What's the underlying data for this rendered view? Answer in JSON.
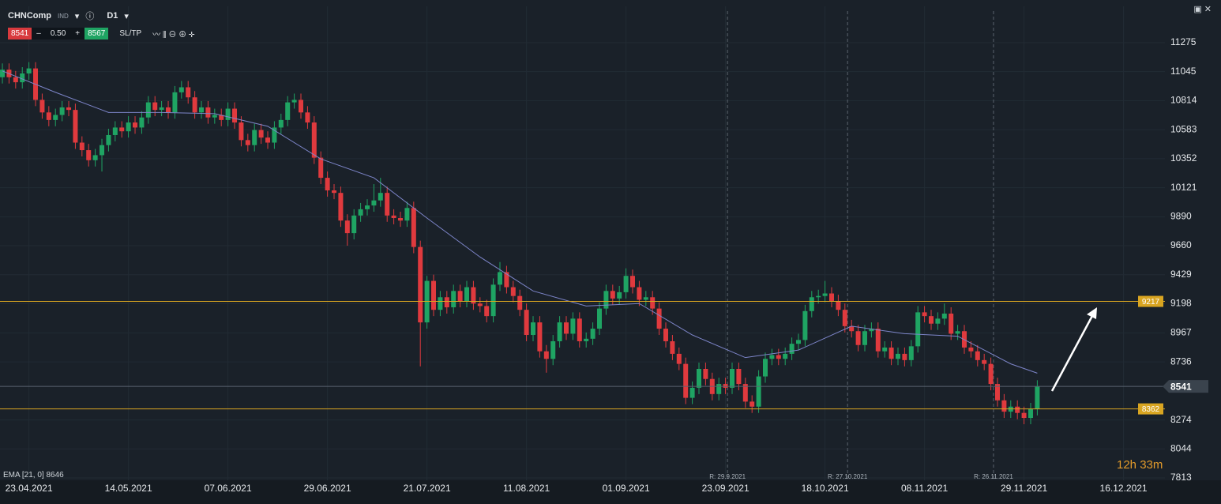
{
  "toolbar": {
    "symbol": "CHNComp",
    "kind": "IND",
    "timeframe": "D1",
    "sell": "8541",
    "minus": "–",
    "spread": "0.50",
    "plus": "+",
    "buy": "8567",
    "sltp": "SL/TP"
  },
  "timer": "12h 33m",
  "chart_data": {
    "type": "candlestick",
    "up_color": "#1fa463",
    "down_color": "#e03a3e",
    "ylim": [
      7794,
      11564
    ],
    "yticks": [
      7813,
      8044,
      8274,
      8736,
      8967,
      9198,
      9429,
      9660,
      9890,
      10121,
      10352,
      10583,
      10814,
      11045,
      11275
    ],
    "xlim": [
      -0.36,
      175.24
    ],
    "xticks": [
      {
        "value": 4,
        "label": "23.04.2021"
      },
      {
        "value": 19,
        "label": "14.05.2021"
      },
      {
        "value": 34,
        "label": "07.06.2021"
      },
      {
        "value": 49,
        "label": "29.06.2021"
      },
      {
        "value": 64,
        "label": "21.07.2021"
      },
      {
        "value": 79,
        "label": "11.08.2021"
      },
      {
        "value": 94,
        "label": "01.09.2021"
      },
      {
        "value": 109,
        "label": "23.09.2021"
      },
      {
        "value": 124,
        "label": "18.10.2021"
      },
      {
        "value": 139,
        "label": "08.11.2021"
      },
      {
        "value": 154,
        "label": "29.11.2021"
      },
      {
        "value": 169,
        "label": "16.12.2021"
      }
    ],
    "grid": true,
    "candles": [
      [
        11000,
        11110,
        10950,
        11060
      ],
      [
        11060,
        11110,
        10950,
        11000
      ],
      [
        11000,
        11050,
        10910,
        10960
      ],
      [
        10960,
        11080,
        10910,
        11030
      ],
      [
        11030,
        11120,
        10980,
        11070
      ],
      [
        11070,
        11120,
        10770,
        10820
      ],
      [
        10820,
        10870,
        10670,
        10720
      ],
      [
        10720,
        10770,
        10610,
        10660
      ],
      [
        10660,
        10750,
        10610,
        10700
      ],
      [
        10700,
        10810,
        10650,
        10760
      ],
      [
        10760,
        10810,
        10690,
        10740
      ],
      [
        10740,
        10790,
        10430,
        10480
      ],
      [
        10480,
        10530,
        10370,
        10420
      ],
      [
        10420,
        10470,
        10290,
        10340
      ],
      [
        10340,
        10430,
        10290,
        10380
      ],
      [
        10380,
        10510,
        10250,
        10460
      ],
      [
        10460,
        10590,
        10410,
        10540
      ],
      [
        10540,
        10650,
        10490,
        10600
      ],
      [
        10600,
        10650,
        10520,
        10570
      ],
      [
        10570,
        10690,
        10520,
        10640
      ],
      [
        10640,
        10690,
        10550,
        10600
      ],
      [
        10600,
        10730,
        10550,
        10680
      ],
      [
        10680,
        10850,
        10630,
        10800
      ],
      [
        10800,
        10850,
        10690,
        10740
      ],
      [
        10740,
        10810,
        10690,
        10760
      ],
      [
        10760,
        10810,
        10670,
        10720
      ],
      [
        10720,
        10930,
        10670,
        10880
      ],
      [
        10880,
        10970,
        10830,
        10920
      ],
      [
        10920,
        10970,
        10790,
        10840
      ],
      [
        10840,
        10890,
        10670,
        10720
      ],
      [
        10720,
        10810,
        10670,
        10760
      ],
      [
        10760,
        10810,
        10630,
        10680
      ],
      [
        10680,
        10750,
        10630,
        10700
      ],
      [
        10700,
        10750,
        10610,
        10660
      ],
      [
        10660,
        10800,
        10610,
        10750
      ],
      [
        10750,
        10800,
        10590,
        10640
      ],
      [
        10640,
        10690,
        10450,
        10500
      ],
      [
        10500,
        10550,
        10410,
        10460
      ],
      [
        10460,
        10630,
        10410,
        10580
      ],
      [
        10580,
        10630,
        10470,
        10520
      ],
      [
        10520,
        10570,
        10430,
        10480
      ],
      [
        10480,
        10650,
        10430,
        10600
      ],
      [
        10600,
        10710,
        10550,
        10660
      ],
      [
        10660,
        10850,
        10610,
        10800
      ],
      [
        10800,
        10870,
        10750,
        10820
      ],
      [
        10820,
        10870,
        10670,
        10720
      ],
      [
        10720,
        10770,
        10590,
        10640
      ],
      [
        10640,
        10690,
        10310,
        10360
      ],
      [
        10360,
        10410,
        10150,
        10200
      ],
      [
        10200,
        10250,
        10050,
        10100
      ],
      [
        10100,
        10150,
        10030,
        10080
      ],
      [
        10080,
        10130,
        9810,
        9860
      ],
      [
        9860,
        9910,
        9660,
        9760
      ],
      [
        9760,
        9950,
        9710,
        9900
      ],
      [
        9900,
        10000,
        9850,
        9950
      ],
      [
        9950,
        10030,
        9900,
        9980
      ],
      [
        9980,
        10150,
        9930,
        10020
      ],
      [
        10020,
        10200,
        9970,
        10080
      ],
      [
        10080,
        10130,
        9850,
        9900
      ],
      [
        9900,
        9950,
        9830,
        9880
      ],
      [
        9880,
        9930,
        9810,
        9860
      ],
      [
        9860,
        10010,
        9810,
        9960
      ],
      [
        9960,
        10010,
        9600,
        9650
      ],
      [
        9650,
        9700,
        8700,
        9050
      ],
      [
        9050,
        9420,
        9000,
        9380
      ],
      [
        9380,
        9430,
        9100,
        9150
      ],
      [
        9150,
        9300,
        9100,
        9250
      ],
      [
        9250,
        9300,
        9120,
        9170
      ],
      [
        9170,
        9350,
        9120,
        9300
      ],
      [
        9300,
        9350,
        9170,
        9220
      ],
      [
        9220,
        9380,
        9170,
        9330
      ],
      [
        9330,
        9380,
        9150,
        9200
      ],
      [
        9200,
        9250,
        9130,
        9180
      ],
      [
        9180,
        9230,
        9050,
        9100
      ],
      [
        9100,
        9400,
        9050,
        9350
      ],
      [
        9350,
        9530,
        9300,
        9450
      ],
      [
        9450,
        9500,
        9280,
        9330
      ],
      [
        9330,
        9380,
        9210,
        9260
      ],
      [
        9260,
        9310,
        9100,
        9150
      ],
      [
        9150,
        9200,
        8900,
        8950
      ],
      [
        8950,
        9100,
        8900,
        9050
      ],
      [
        9050,
        9100,
        8770,
        8820
      ],
      [
        8820,
        8870,
        8650,
        8760
      ],
      [
        8760,
        8950,
        8710,
        8900
      ],
      [
        8900,
        9100,
        8850,
        9050
      ],
      [
        9050,
        9100,
        8910,
        8960
      ],
      [
        8960,
        9130,
        8910,
        9080
      ],
      [
        9080,
        9130,
        8850,
        8900
      ],
      [
        8900,
        8970,
        8850,
        8920
      ],
      [
        8920,
        9050,
        8870,
        9000
      ],
      [
        9000,
        9210,
        8950,
        9160
      ],
      [
        9160,
        9350,
        9110,
        9300
      ],
      [
        9300,
        9350,
        9190,
        9240
      ],
      [
        9240,
        9340,
        9190,
        9290
      ],
      [
        9290,
        9480,
        9240,
        9420
      ],
      [
        9420,
        9470,
        9280,
        9330
      ],
      [
        9330,
        9380,
        9180,
        9230
      ],
      [
        9230,
        9300,
        9180,
        9250
      ],
      [
        9250,
        9300,
        9110,
        9160
      ],
      [
        9160,
        9210,
        8950,
        9000
      ],
      [
        9000,
        9050,
        8850,
        8900
      ],
      [
        8900,
        8950,
        8750,
        8800
      ],
      [
        8800,
        8850,
        8670,
        8720
      ],
      [
        8720,
        8770,
        8400,
        8450
      ],
      [
        8450,
        8580,
        8400,
        8530
      ],
      [
        8530,
        8730,
        8480,
        8680
      ],
      [
        8680,
        8730,
        8550,
        8600
      ],
      [
        8600,
        8650,
        8430,
        8480
      ],
      [
        8480,
        8610,
        8430,
        8560
      ],
      [
        8560,
        8610,
        8480,
        8530
      ],
      [
        8530,
        8730,
        8480,
        8680
      ],
      [
        8680,
        8730,
        8510,
        8560
      ],
      [
        8560,
        8610,
        8370,
        8420
      ],
      [
        8420,
        8470,
        8330,
        8380
      ],
      [
        8380,
        8670,
        8330,
        8620
      ],
      [
        8620,
        8810,
        8570,
        8760
      ],
      [
        8760,
        8840,
        8710,
        8790
      ],
      [
        8790,
        8840,
        8710,
        8760
      ],
      [
        8760,
        8850,
        8710,
        8800
      ],
      [
        8800,
        8930,
        8750,
        8880
      ],
      [
        8880,
        8960,
        8830,
        8910
      ],
      [
        8910,
        9190,
        8860,
        9140
      ],
      [
        9140,
        9300,
        9090,
        9250
      ],
      [
        9250,
        9310,
        9200,
        9260
      ],
      [
        9260,
        9380,
        9210,
        9280
      ],
      [
        9280,
        9330,
        9170,
        9220
      ],
      [
        9220,
        9270,
        9100,
        9150
      ],
      [
        9150,
        9200,
        8970,
        9020
      ],
      [
        9020,
        9070,
        8930,
        8980
      ],
      [
        8980,
        9030,
        8820,
        8870
      ],
      [
        8870,
        9030,
        8820,
        8980
      ],
      [
        8980,
        9050,
        8930,
        9000
      ],
      [
        9000,
        9050,
        8770,
        8820
      ],
      [
        8820,
        8900,
        8770,
        8850
      ],
      [
        8850,
        8900,
        8710,
        8760
      ],
      [
        8760,
        8850,
        8710,
        8800
      ],
      [
        8800,
        8850,
        8700,
        8750
      ],
      [
        8750,
        8910,
        8700,
        8860
      ],
      [
        8860,
        9180,
        8810,
        9130
      ],
      [
        9130,
        9180,
        9050,
        9100
      ],
      [
        9100,
        9150,
        8990,
        9040
      ],
      [
        9040,
        9130,
        8990,
        9080
      ],
      [
        9080,
        9200,
        9030,
        9120
      ],
      [
        9120,
        9170,
        8910,
        8960
      ],
      [
        8960,
        9030,
        8910,
        8980
      ],
      [
        8980,
        9030,
        8800,
        8850
      ],
      [
        8850,
        8900,
        8770,
        8820
      ],
      [
        8820,
        8870,
        8700,
        8750
      ],
      [
        8750,
        8800,
        8670,
        8720
      ],
      [
        8720,
        8770,
        8510,
        8560
      ],
      [
        8560,
        8610,
        8380,
        8430
      ],
      [
        8430,
        8480,
        8290,
        8340
      ],
      [
        8340,
        8430,
        8290,
        8380
      ],
      [
        8380,
        8430,
        8280,
        8330
      ],
      [
        8330,
        8380,
        8240,
        8290
      ],
      [
        8290,
        8410,
        8240,
        8360
      ],
      [
        8360,
        8590,
        8310,
        8541
      ]
    ],
    "ema": {
      "name": "EMA [21, 0] 8646",
      "color": "#7d85c9",
      "x": [
        0,
        8,
        16,
        24,
        32,
        40,
        48,
        56,
        64,
        72,
        80,
        88,
        96,
        104,
        112,
        120,
        128,
        136,
        144,
        152,
        156
      ],
      "values": [
        11050,
        10880,
        10720,
        10720,
        10710,
        10610,
        10350,
        10200,
        9880,
        9570,
        9300,
        9180,
        9200,
        8950,
        8770,
        8830,
        9020,
        8960,
        8940,
        8720,
        8646
      ]
    },
    "levels": [
      {
        "value": 9217,
        "color": "#d9a521"
      },
      {
        "value": 8362,
        "color": "#d9a521"
      }
    ],
    "current": {
      "value": 8541,
      "color": "#5b6470"
    },
    "events": [
      {
        "label": "R: 29.9.2021",
        "x": 109.3
      },
      {
        "label": "R: 27.10.2021",
        "x": 127.4
      },
      {
        "label": "R: 26.11.2021",
        "x": 149.4
      }
    ]
  }
}
